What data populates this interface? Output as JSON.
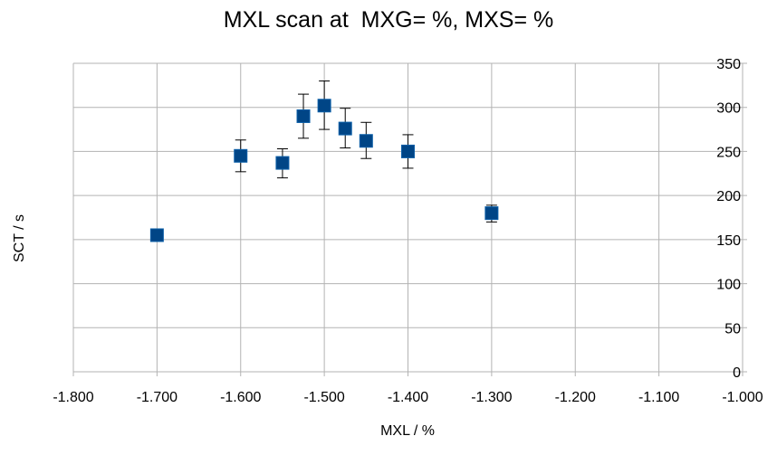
{
  "chart_data": {
    "type": "scatter",
    "title": "MXL scan at  MXG= %, MXS= %",
    "xlabel": "MXL / %",
    "ylabel": "SCT / s",
    "xlim": [
      -1.8,
      -1.0
    ],
    "ylim": [
      0,
      350
    ],
    "x_ticks": [
      "-1.800",
      "-1.700",
      "-1.600",
      "-1.500",
      "-1.400",
      "-1.300",
      "-1.200",
      "-1.100",
      "-1.000"
    ],
    "y_ticks": [
      "0",
      "50",
      "100",
      "150",
      "200",
      "250",
      "300",
      "350"
    ],
    "y_axis_position": "right",
    "grid": true,
    "marker_color": "#004586",
    "series": [
      {
        "points": [
          {
            "x": -1.7,
            "y": 155,
            "err_low": 0,
            "err_high": 0
          },
          {
            "x": -1.6,
            "y": 245,
            "err_low": 18,
            "err_high": 18
          },
          {
            "x": -1.55,
            "y": 237,
            "err_low": 17,
            "err_high": 16
          },
          {
            "x": -1.525,
            "y": 290,
            "err_low": 25,
            "err_high": 25
          },
          {
            "x": -1.5,
            "y": 302,
            "err_low": 27,
            "err_high": 28
          },
          {
            "x": -1.475,
            "y": 276,
            "err_low": 22,
            "err_high": 23
          },
          {
            "x": -1.45,
            "y": 262,
            "err_low": 20,
            "err_high": 21
          },
          {
            "x": -1.4,
            "y": 250,
            "err_low": 19,
            "err_high": 19
          },
          {
            "x": -1.3,
            "y": 180,
            "err_low": 10,
            "err_high": 9
          }
        ]
      }
    ]
  }
}
